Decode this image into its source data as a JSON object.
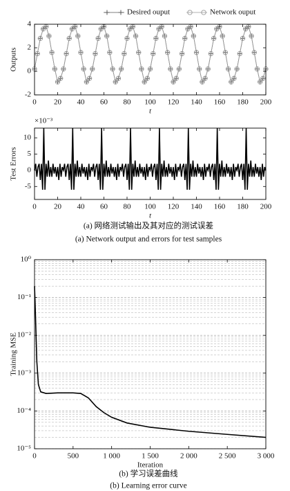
{
  "chart_data": [
    {
      "type": "line",
      "x_label": "t",
      "y_label": "Outputs",
      "x": [
        0,
        2.5,
        5,
        7.5,
        10,
        12.5,
        15,
        17.5,
        20,
        22.5,
        25,
        27.5,
        30,
        32.5,
        35,
        37.5,
        40,
        42.5,
        45,
        47.5,
        50,
        52.5,
        55,
        57.5,
        60,
        62.5,
        65,
        67.5,
        70,
        72.5,
        75,
        77.5,
        80,
        82.5,
        85,
        87.5,
        90,
        92.5,
        95,
        97.5,
        100,
        102.5,
        105,
        107.5,
        110,
        112.5,
        115,
        117.5,
        120,
        122.5,
        125,
        127.5,
        130,
        132.5,
        135,
        137.5,
        140,
        142.5,
        145,
        147.5,
        150,
        152.5,
        155,
        157.5,
        160,
        162.5,
        165,
        167.5,
        170,
        172.5,
        175,
        177.5,
        180,
        182.5,
        185,
        187.5,
        190,
        192.5,
        195,
        197.5,
        200
      ],
      "series": [
        {
          "name": "Desired ouput",
          "color": "#555555",
          "marker": "+",
          "values": [
            0.2,
            1.5,
            2.8,
            3.6,
            3.8,
            3.0,
            1.6,
            0.2,
            -0.9,
            -0.6,
            0.2,
            1.5,
            2.8,
            3.6,
            3.8,
            3.0,
            1.6,
            0.2,
            -0.9,
            -0.6,
            0.2,
            1.5,
            2.8,
            3.6,
            3.8,
            3.0,
            1.6,
            0.2,
            -0.9,
            -0.6,
            0.2,
            1.5,
            2.8,
            3.6,
            3.8,
            3.0,
            1.6,
            0.2,
            -0.9,
            -0.6,
            0.2,
            1.5,
            2.8,
            3.6,
            3.8,
            3.0,
            1.6,
            0.2,
            -0.9,
            -0.6,
            0.2,
            1.5,
            2.8,
            3.6,
            3.8,
            3.0,
            1.6,
            0.2,
            -0.9,
            -0.6,
            0.2,
            1.5,
            2.8,
            3.6,
            3.8,
            3.0,
            1.6,
            0.2,
            -0.9,
            -0.6,
            0.2,
            1.5,
            2.8,
            3.6,
            3.8,
            3.0,
            1.6,
            0.2,
            -0.9,
            -0.6,
            0.2
          ]
        },
        {
          "name": "Network ouput",
          "color": "#999999",
          "marker": "o",
          "values": [
            0.2,
            1.5,
            2.8,
            3.6,
            3.8,
            3.0,
            1.6,
            0.2,
            -0.9,
            -0.6,
            0.2,
            1.5,
            2.8,
            3.6,
            3.8,
            3.0,
            1.6,
            0.2,
            -0.9,
            -0.6,
            0.2,
            1.5,
            2.8,
            3.6,
            3.8,
            3.0,
            1.6,
            0.2,
            -0.9,
            -0.6,
            0.2,
            1.5,
            2.8,
            3.6,
            3.8,
            3.0,
            1.6,
            0.2,
            -0.9,
            -0.6,
            0.2,
            1.5,
            2.8,
            3.6,
            3.8,
            3.0,
            1.6,
            0.2,
            -0.9,
            -0.6,
            0.2,
            1.5,
            2.8,
            3.6,
            3.8,
            3.0,
            1.6,
            0.2,
            -0.9,
            -0.6,
            0.2,
            1.5,
            2.8,
            3.6,
            3.8,
            3.0,
            1.6,
            0.2,
            -0.9,
            -0.6,
            0.2,
            1.5,
            2.8,
            3.6,
            3.8,
            3.0,
            1.6,
            0.2,
            -0.9,
            -0.6,
            0.2
          ]
        }
      ],
      "xlim": [
        0,
        200
      ],
      "ylim": [
        -2,
        4
      ],
      "xticks": [
        0,
        20,
        40,
        60,
        80,
        100,
        120,
        140,
        160,
        180,
        200
      ],
      "yticks": [
        -2,
        0,
        2,
        4
      ],
      "legend": "top-right"
    },
    {
      "type": "line",
      "x_label": "t",
      "y_label": "Test Errors",
      "y_multiplier": "×10⁻³",
      "x": [
        0,
        1,
        2,
        3,
        4,
        5,
        6,
        7,
        8,
        9,
        10,
        11,
        12,
        13,
        14,
        15,
        16,
        17,
        18,
        19,
        20,
        21,
        22,
        23,
        24,
        25,
        26,
        27,
        28,
        29,
        30,
        31,
        32,
        33,
        34,
        35,
        36,
        37,
        38,
        39,
        40,
        41,
        42,
        43,
        44,
        45,
        46,
        47,
        48,
        49,
        50,
        51,
        52,
        53,
        54,
        55,
        56,
        57,
        58,
        59,
        60,
        61,
        62,
        63,
        64,
        65,
        66,
        67,
        68,
        69,
        70,
        71,
        72,
        73,
        74,
        75,
        76,
        77,
        78,
        79,
        80,
        81,
        82,
        83,
        84,
        85,
        86,
        87,
        88,
        89,
        90,
        91,
        92,
        93,
        94,
        95,
        96,
        97,
        98,
        99,
        100,
        101,
        102,
        103,
        104,
        105,
        106,
        107,
        108,
        109,
        110,
        111,
        112,
        113,
        114,
        115,
        116,
        117,
        118,
        119,
        120,
        121,
        122,
        123,
        124,
        125,
        126,
        127,
        128,
        129,
        130,
        131,
        132,
        133,
        134,
        135,
        136,
        137,
        138,
        139,
        140,
        141,
        142,
        143,
        144,
        145,
        146,
        147,
        148,
        149,
        150,
        151,
        152,
        153,
        154,
        155,
        156,
        157,
        158,
        159,
        160,
        161,
        162,
        163,
        164,
        165,
        166,
        167,
        168,
        169,
        170,
        171,
        172,
        173,
        174,
        175,
        176,
        177,
        178,
        179,
        180,
        181,
        182,
        183,
        184,
        185,
        186,
        187,
        188,
        189,
        190,
        191,
        192,
        193,
        194,
        195,
        196,
        197,
        198,
        199,
        200
      ],
      "values": [
        0,
        2,
        -2,
        1,
        2,
        -3,
        2,
        -6,
        13,
        -6,
        2,
        -2,
        3,
        -2,
        1,
        -2,
        2,
        -1,
        1,
        -2,
        1,
        -3,
        2,
        -2,
        1,
        0,
        2,
        -2,
        1,
        2,
        -3,
        2,
        -6,
        13,
        -6,
        2,
        -2,
        3,
        -2,
        1,
        -2,
        2,
        -1,
        1,
        -2,
        1,
        -3,
        2,
        -2,
        1,
        0,
        2,
        -2,
        1,
        2,
        -3,
        2,
        -6,
        13,
        -6,
        2,
        -2,
        3,
        -2,
        1,
        -2,
        2,
        -1,
        1,
        -2,
        1,
        -3,
        2,
        -2,
        1,
        0,
        2,
        -2,
        1,
        2,
        -3,
        2,
        -6,
        13,
        -6,
        2,
        -2,
        3,
        -2,
        1,
        -2,
        2,
        -1,
        1,
        -2,
        1,
        -3,
        2,
        -2,
        1,
        0,
        2,
        -2,
        1,
        2,
        -3,
        2,
        -6,
        13,
        -6,
        2,
        -2,
        3,
        -2,
        1,
        -2,
        2,
        -1,
        1,
        -2,
        1,
        -3,
        2,
        -2,
        1,
        0,
        2,
        -2,
        1,
        2,
        -3,
        2,
        -6,
        13,
        -6,
        2,
        -2,
        3,
        -2,
        1,
        -2,
        2,
        -1,
        1,
        -2,
        1,
        -3,
        2,
        -2,
        1,
        0,
        2,
        -2,
        1,
        2,
        -3,
        2,
        -6,
        13,
        -6,
        2,
        -2,
        3,
        -2,
        1,
        -2,
        2,
        -1,
        1,
        -2,
        1,
        -3,
        2,
        -2,
        1,
        0,
        2,
        -2,
        1,
        2,
        -3,
        2,
        -6,
        13,
        -6,
        2,
        -2,
        3,
        -2,
        1,
        -2,
        2,
        -1,
        1,
        -2,
        1,
        -3,
        2,
        -2,
        1,
        0
      ],
      "color": "#000000",
      "xlim": [
        0,
        200
      ],
      "ylim": [
        -9,
        13
      ],
      "xticks": [
        0,
        20,
        40,
        60,
        80,
        100,
        120,
        140,
        160,
        180,
        200
      ],
      "yticks": [
        -5,
        0,
        5,
        10
      ]
    },
    {
      "type": "line",
      "x_label": "Iteration",
      "y_label": "Training MSE",
      "log_y": true,
      "x": [
        0,
        10,
        20,
        30,
        50,
        80,
        150,
        300,
        500,
        600,
        700,
        800,
        900,
        1000,
        1200,
        1500,
        2000,
        2500,
        3000
      ],
      "values": [
        0.2,
        0.05,
        0.01,
        0.002,
        0.0005,
        0.00032,
        0.00029,
        0.0003,
        0.0003,
        0.00029,
        0.00022,
        0.00013,
        9e-05,
        6.8e-05,
        4.8e-05,
        3.7e-05,
        2.9e-05,
        2.4e-05,
        2e-05
      ],
      "color": "#000000",
      "xlim": [
        0,
        3000
      ],
      "ylim": [
        1e-05,
        1
      ],
      "xticks": [
        0,
        500,
        {
          "value": 1000,
          "label": "1 000"
        },
        {
          "value": 1500,
          "label": "1 500"
        },
        {
          "value": 2000,
          "label": "2 000"
        },
        {
          "value": 2500,
          "label": "2 500"
        },
        {
          "value": 3000,
          "label": "3 000"
        }
      ],
      "yticks": [
        {
          "value": 1e-05,
          "label": "10⁻⁵"
        },
        {
          "value": 0.0001,
          "label": "10⁻⁴"
        },
        {
          "value": 0.001,
          "label": "10⁻³"
        },
        {
          "value": 0.01,
          "label": "10⁻²"
        },
        {
          "value": 0.1,
          "label": "10⁻¹"
        },
        {
          "value": 1,
          "label": "10⁰"
        }
      ],
      "grid": true,
      "minor_grid": true
    }
  ],
  "captions": [
    "(a) 网络测试输出及其对应的测试误差",
    "(a) Network output and errors for test samples",
    "(b) 学习误差曲线",
    "(b) Learning error curve"
  ]
}
